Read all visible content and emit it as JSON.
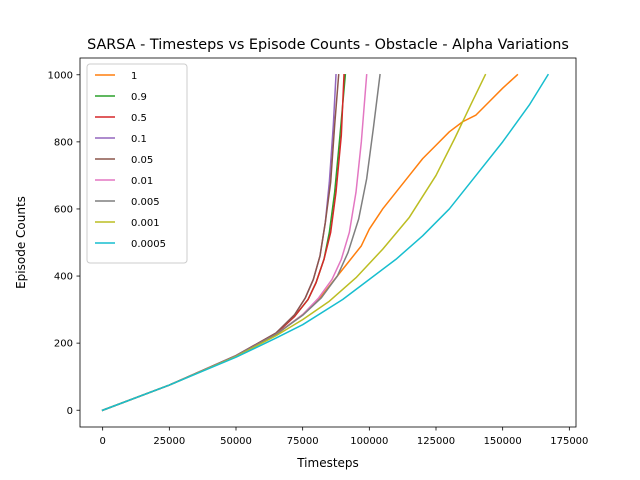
{
  "chart_data": {
    "type": "line",
    "title": "SARSA - Timesteps vs Episode Counts - Obstacle - Alpha Variations",
    "xlabel": "Timesteps",
    "ylabel": "Episode Counts",
    "xlim": [
      -8500,
      177500
    ],
    "ylim": [
      -50,
      1050
    ],
    "xticks": [
      0,
      25000,
      50000,
      75000,
      100000,
      125000,
      150000,
      175000
    ],
    "xtick_labels": [
      "0",
      "25000",
      "50000",
      "75000",
      "100000",
      "125000",
      "150000",
      "175000"
    ],
    "yticks": [
      0,
      200,
      400,
      600,
      800,
      1000
    ],
    "ytick_labels": [
      "0",
      "200",
      "400",
      "600",
      "800",
      "1000"
    ],
    "grid": false,
    "legend_position": "top-left",
    "series": [
      {
        "name": "1",
        "color": "#ff7f0e",
        "x": [
          0,
          25000,
          50000,
          65000,
          75000,
          82000,
          87000,
          92000,
          97000,
          100000,
          105000,
          110000,
          115000,
          120000,
          125000,
          130000,
          135000,
          140000,
          145000,
          150000,
          155500
        ],
        "y": [
          0,
          75,
          160,
          225,
          285,
          340,
          390,
          440,
          490,
          540,
          600,
          650,
          700,
          750,
          790,
          830,
          860,
          880,
          920,
          960,
          1000
        ]
      },
      {
        "name": "0.9",
        "color": "#2ca02c",
        "x": [
          0,
          25000,
          50000,
          65000,
          72000,
          77000,
          80000,
          83000,
          85000,
          87000,
          89000,
          91000
        ],
        "y": [
          0,
          75,
          162,
          228,
          280,
          330,
          380,
          450,
          530,
          650,
          820,
          1000
        ]
      },
      {
        "name": "0.5",
        "color": "#d62728",
        "x": [
          0,
          25000,
          50000,
          65000,
          72000,
          77000,
          80000,
          83000,
          85500,
          87500,
          89500,
          90500
        ],
        "y": [
          0,
          75,
          162,
          228,
          280,
          330,
          380,
          450,
          530,
          650,
          820,
          1000
        ]
      },
      {
        "name": "0.1",
        "color": "#9467bd",
        "x": [
          0,
          25000,
          50000,
          65000,
          72000,
          76000,
          79000,
          81500,
          83500,
          85000,
          86500,
          87500
        ],
        "y": [
          0,
          75,
          163,
          230,
          285,
          335,
          390,
          460,
          560,
          680,
          850,
          1000
        ]
      },
      {
        "name": "0.05",
        "color": "#8c564b",
        "x": [
          0,
          25000,
          50000,
          65000,
          72000,
          76000,
          79000,
          81500,
          83500,
          85500,
          87000,
          88500
        ],
        "y": [
          0,
          75,
          163,
          230,
          285,
          335,
          390,
          460,
          560,
          680,
          850,
          1000
        ]
      },
      {
        "name": "0.01",
        "color": "#e377c2",
        "x": [
          0,
          25000,
          50000,
          65000,
          75000,
          81000,
          86000,
          89500,
          92500,
          95000,
          97000,
          99000
        ],
        "y": [
          0,
          75,
          162,
          226,
          285,
          335,
          390,
          450,
          530,
          650,
          800,
          1000
        ]
      },
      {
        "name": "0.005",
        "color": "#7f7f7f",
        "x": [
          0,
          25000,
          50000,
          65000,
          75000,
          82000,
          88000,
          92000,
          96000,
          99000,
          101500,
          104000
        ],
        "y": [
          0,
          75,
          162,
          226,
          283,
          335,
          400,
          470,
          570,
          690,
          840,
          1000
        ]
      },
      {
        "name": "0.001",
        "color": "#bcbd22",
        "x": [
          0,
          25000,
          50000,
          65000,
          75000,
          85000,
          95000,
          105000,
          115000,
          125000,
          132000,
          138000,
          143500
        ],
        "y": [
          0,
          75,
          160,
          222,
          270,
          325,
          395,
          480,
          575,
          700,
          810,
          910,
          1000
        ]
      },
      {
        "name": "0.0005",
        "color": "#17becf",
        "x": [
          0,
          25000,
          50000,
          65000,
          75000,
          90000,
          100000,
          110000,
          120000,
          130000,
          140000,
          150000,
          160000,
          167000
        ],
        "y": [
          0,
          75,
          158,
          215,
          255,
          330,
          390,
          450,
          520,
          600,
          700,
          800,
          910,
          1000
        ]
      }
    ]
  }
}
